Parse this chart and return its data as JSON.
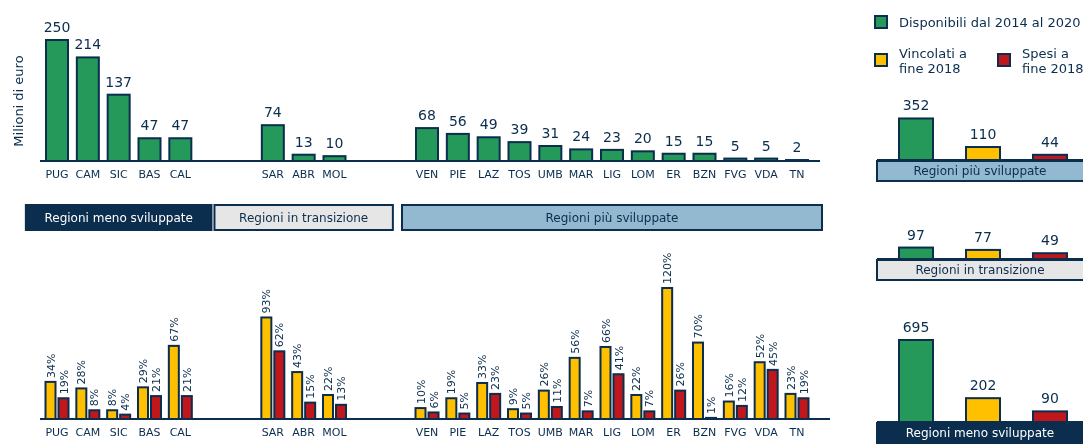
{
  "chart_data": [
    {
      "type": "bar",
      "ylabel": "Milioni di euro",
      "data_labels": true,
      "categories": [
        "PUG",
        "CAM",
        "SIC",
        "BAS",
        "CAL",
        null,
        null,
        "SAR",
        "ABR",
        "MOL",
        null,
        null,
        "VEN",
        "PIE",
        "LAZ",
        "TOS",
        "UMB",
        "MAR",
        "LIG",
        "LOM",
        "ER",
        "BZN",
        "FVG",
        "VDA",
        "TN"
      ],
      "series": [
        {
          "color": "#24995a",
          "values": [
            250,
            214,
            137,
            47,
            47,
            null,
            null,
            74,
            13,
            10,
            null,
            null,
            68,
            56,
            49,
            39,
            31,
            24,
            23,
            20,
            15,
            15,
            5,
            5,
            2
          ]
        }
      ],
      "annotations": [
        "Regioni meno sviluppate",
        "Regioni in transizione",
        "Regioni più sviluppate"
      ]
    },
    {
      "type": "bar",
      "categories": [
        "PUG",
        "CAM",
        "SIC",
        "BAS",
        "CAL",
        null,
        null,
        "SAR",
        "ABR",
        "MOL",
        null,
        null,
        "VEN",
        "PIE",
        "LAZ",
        "TOS",
        "UMB",
        "MAR",
        "LIG",
        "LOM",
        "ER",
        "BZN",
        "FVG",
        "VDA",
        "TN"
      ],
      "series": [
        {
          "color": "#ffc000",
          "values": [
            34,
            28,
            8,
            29,
            67,
            null,
            null,
            93,
            43,
            22,
            null,
            null,
            10,
            19,
            33,
            9,
            26,
            56,
            66,
            22,
            120,
            70,
            16,
            52,
            23
          ],
          "value_labels": [
            "34%",
            "28%",
            "8%",
            "29%",
            "67%",
            null,
            null,
            "93%",
            "43%",
            "22%",
            null,
            null,
            "10%",
            "19%",
            "33%",
            "9%",
            "26%",
            "56%",
            "66%",
            "22%",
            "120%",
            "70%",
            "16%",
            "52%",
            "23%"
          ]
        },
        {
          "color": "#c0171d",
          "values": [
            19,
            8,
            4,
            21,
            21,
            null,
            null,
            62,
            15,
            13,
            null,
            null,
            6,
            5,
            23,
            5,
            11,
            7,
            41,
            7,
            26,
            1,
            12,
            45,
            19
          ],
          "value_labels": [
            "19%",
            "8%",
            "4%",
            "21%",
            "21%",
            null,
            null,
            "62%",
            "15%",
            "13%",
            null,
            null,
            "6%",
            "5%",
            "23%",
            "5%",
            "11%",
            "7%",
            "41%",
            "7%",
            "26%",
            "1%",
            "12%",
            "45%",
            "19%"
          ]
        }
      ]
    },
    {
      "type": "bar",
      "stacked": true,
      "data_labels": true,
      "legend": "top",
      "xlabel": "Regioni più sviluppate",
      "categories": [
        null,
        null,
        null
      ],
      "series": [
        {
          "name": "Disponibili dal 2014 al 2020",
          "color": "#24995a",
          "values": [
            352,
            null,
            null
          ]
        },
        {
          "name": "Vincolati a fine 2018",
          "color": "#ffc000",
          "values": [
            null,
            110,
            null
          ]
        },
        {
          "name": "Spesi a fine 2018",
          "color": "#c0171d",
          "values": [
            null,
            null,
            44
          ]
        }
      ]
    },
    {
      "type": "bar",
      "stacked": true,
      "data_labels": true,
      "xlabel": "Regioni in transizione",
      "categories": [
        null,
        null,
        null
      ],
      "series": [
        {
          "color": "#24995a",
          "values": [
            97,
            null,
            null
          ]
        },
        {
          "color": "#ffc000",
          "values": [
            null,
            77,
            null
          ]
        },
        {
          "color": "#c0171d",
          "values": [
            null,
            null,
            49
          ]
        }
      ]
    },
    {
      "type": "bar",
      "stacked": true,
      "data_labels": true,
      "xlabel": "Regioni meno sviluppate",
      "categories": [
        null,
        null,
        null
      ],
      "series": [
        {
          "color": "#24995a",
          "values": [
            695,
            null,
            null
          ]
        },
        {
          "color": "#ffc000",
          "values": [
            null,
            202,
            null
          ]
        },
        {
          "color": "#c0171d",
          "values": [
            null,
            null,
            90
          ]
        }
      ]
    }
  ]
}
